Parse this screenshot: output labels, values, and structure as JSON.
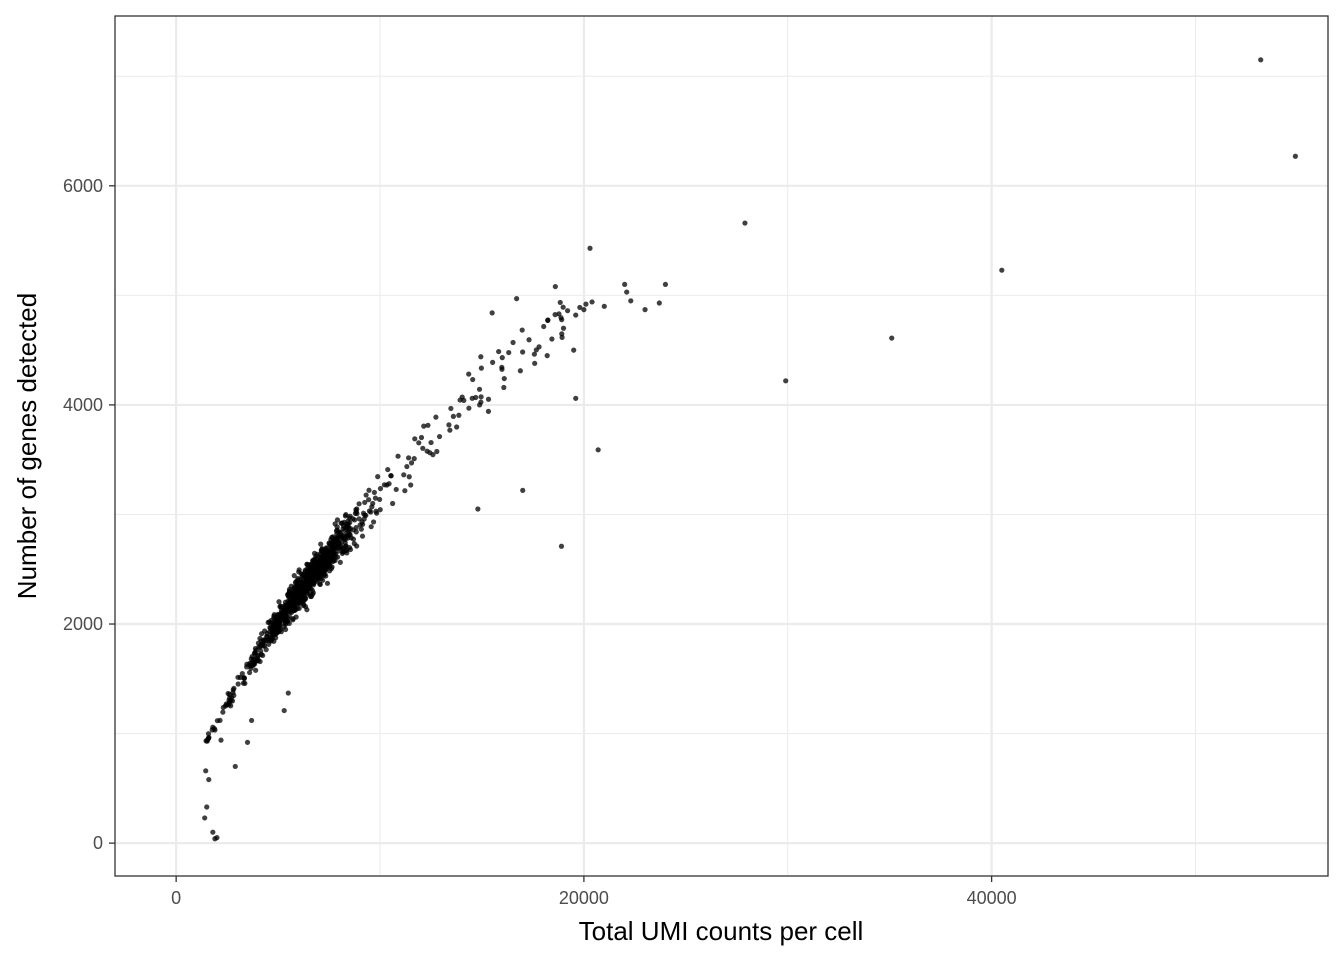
{
  "chart_data": {
    "type": "scatter",
    "title": "",
    "xlabel": "Total UMI counts per cell",
    "ylabel": "Number of genes detected",
    "xlim": [
      -3000,
      56500
    ],
    "ylim": [
      -300,
      7550
    ],
    "x_ticks": [
      0,
      20000,
      40000
    ],
    "x_tick_labels": [
      "0",
      "20000",
      "40000"
    ],
    "y_ticks": [
      0,
      2000,
      4000,
      6000
    ],
    "y_tick_labels": [
      "0",
      "2000",
      "4000",
      "6000"
    ],
    "grid": true,
    "theme": "bw",
    "point_color": "#000000",
    "point_opacity": 0.75,
    "main_cluster": {
      "n": 900,
      "x_range": [
        1400,
        19000
      ],
      "curve": "genes ≈ 7.3 * UMI^0.66"
    },
    "points": [
      [
        53200,
        7150
      ],
      [
        54900,
        6270
      ],
      [
        27900,
        5660
      ],
      [
        40500,
        5230
      ],
      [
        35100,
        4610
      ],
      [
        29900,
        4220
      ],
      [
        20300,
        5430
      ],
      [
        22000,
        5100
      ],
      [
        22100,
        5030
      ],
      [
        22300,
        4950
      ],
      [
        24000,
        5100
      ],
      [
        23700,
        4930
      ],
      [
        23000,
        4870
      ],
      [
        21000,
        4900
      ],
      [
        20000,
        4870
      ],
      [
        19600,
        4820
      ],
      [
        18600,
        5080
      ],
      [
        19800,
        4890
      ],
      [
        20100,
        4920
      ],
      [
        20400,
        4940
      ],
      [
        19200,
        4860
      ],
      [
        19000,
        4700
      ],
      [
        19500,
        4500
      ],
      [
        18200,
        4450
      ],
      [
        17800,
        4530
      ],
      [
        16700,
        4970
      ],
      [
        15500,
        4840
      ],
      [
        19600,
        4060
      ],
      [
        20700,
        3590
      ],
      [
        17000,
        3220
      ],
      [
        14800,
        3050
      ],
      [
        18900,
        2710
      ],
      [
        5300,
        1210
      ],
      [
        5500,
        1370
      ],
      [
        3700,
        1120
      ],
      [
        2900,
        700
      ],
      [
        3500,
        920
      ],
      [
        2200,
        940
      ],
      [
        1400,
        230
      ],
      [
        1500,
        330
      ],
      [
        1800,
        100
      ],
      [
        1900,
        40
      ],
      [
        2000,
        50
      ],
      [
        1600,
        580
      ],
      [
        1450,
        660
      ],
      [
        2800,
        1400
      ],
      [
        3300,
        1460
      ]
    ]
  }
}
